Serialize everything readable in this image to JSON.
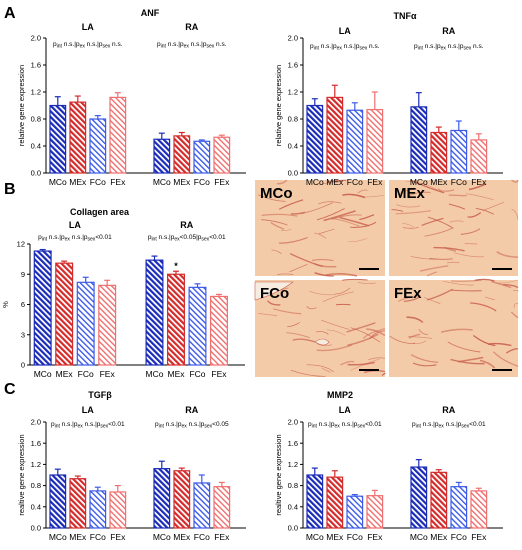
{
  "figure": {
    "panel_letters": [
      "A",
      "B",
      "C"
    ],
    "micrograph": {
      "labels": [
        "MCo",
        "MEx",
        "FCo",
        "FEx"
      ],
      "colors": {
        "background": "#f4cba8",
        "fiber": "#c8604d"
      }
    }
  },
  "colors": {
    "blue": "#1a2bb8",
    "red": "#d42a2a",
    "light_blue": "#3d5be8",
    "light_red": "#f06f6f"
  },
  "chart_data": [
    {
      "id": "anf",
      "type": "bar",
      "title": "ANF",
      "ylabel": "relative gene expression",
      "ylim": [
        0,
        2.0
      ],
      "yticks": [
        "0.0",
        "0.4",
        "0.8",
        "1.2",
        "1.6",
        "2.0"
      ],
      "groups": [
        "LA",
        "RA"
      ],
      "categories": [
        "MCo",
        "MEx",
        "FCo",
        "FEx"
      ],
      "pvalue_labels": {
        "LA": [
          "int n.s.",
          "ex n.s.",
          "sex n.s."
        ],
        "RA": [
          "int n.s.",
          "ex n.s.",
          "sex n.s."
        ]
      },
      "series": [
        {
          "group": "LA",
          "values": [
            1.0,
            1.05,
            0.8,
            1.12
          ],
          "errors": [
            0.13,
            0.09,
            0.05,
            0.07
          ]
        },
        {
          "group": "RA",
          "values": [
            0.5,
            0.55,
            0.47,
            0.53
          ],
          "errors": [
            0.09,
            0.05,
            0.02,
            0.03
          ]
        }
      ],
      "annotations": []
    },
    {
      "id": "tnfa",
      "type": "bar",
      "title": "TNFα",
      "ylabel": "relative gene expression",
      "ylim": [
        0,
        2.0
      ],
      "yticks": [
        "0.0",
        "0.4",
        "0.8",
        "1.2",
        "1.6",
        "2.0"
      ],
      "groups": [
        "LA",
        "RA"
      ],
      "categories": [
        "MCo",
        "MEx",
        "FCo",
        "FEx"
      ],
      "pvalue_labels": {
        "LA": [
          "int n.s.",
          "ex n.s.",
          "sex n.s."
        ],
        "RA": [
          "int n.s.",
          "ex n.s.",
          "sex n.s."
        ]
      },
      "series": [
        {
          "group": "LA",
          "values": [
            1.0,
            1.12,
            0.93,
            0.94
          ],
          "errors": [
            0.1,
            0.18,
            0.11,
            0.26
          ]
        },
        {
          "group": "RA",
          "values": [
            0.98,
            0.6,
            0.63,
            0.49
          ],
          "errors": [
            0.21,
            0.08,
            0.14,
            0.09
          ]
        }
      ],
      "annotations": []
    },
    {
      "id": "collagen",
      "type": "bar",
      "title": "Collagen area",
      "ylabel": "%",
      "ylim": [
        0,
        12
      ],
      "yticks": [
        "0",
        "3",
        "6",
        "9",
        "12"
      ],
      "groups": [
        "LA",
        "RA"
      ],
      "categories": [
        "MCo",
        "MEx",
        "FCo",
        "FEx"
      ],
      "pvalue_labels": {
        "LA": [
          "int n.s.",
          "ex n.s.",
          "sex<0.01"
        ],
        "RA": [
          "int n.s.",
          "ex<0.05",
          "sex<0.01"
        ]
      },
      "series": [
        {
          "group": "LA",
          "values": [
            11.3,
            10.1,
            8.2,
            7.9
          ],
          "errors": [
            0.15,
            0.2,
            0.5,
            0.5
          ]
        },
        {
          "group": "RA",
          "values": [
            10.4,
            9.0,
            7.7,
            6.8
          ],
          "errors": [
            0.4,
            0.3,
            0.35,
            0.2
          ]
        }
      ],
      "annotations": [
        {
          "group": "RA",
          "index": 1,
          "text": "*"
        }
      ]
    },
    {
      "id": "tgfb",
      "type": "bar",
      "title": "TGFβ",
      "ylabel": "realtive gene expression",
      "ylim": [
        0,
        2.0
      ],
      "yticks": [
        "0.0",
        "0.4",
        "0.8",
        "1.2",
        "1.6",
        "2.0"
      ],
      "groups": [
        "LA",
        "RA"
      ],
      "categories": [
        "MCo",
        "MEx",
        "FCo",
        "FEx"
      ],
      "pvalue_labels": {
        "LA": [
          "int n.s.",
          "ex n.s.",
          "sex<0.01"
        ],
        "RA": [
          "int n.s.",
          "ex n.s.",
          "sex<0.05"
        ]
      },
      "series": [
        {
          "group": "LA",
          "values": [
            1.0,
            0.93,
            0.7,
            0.68
          ],
          "errors": [
            0.11,
            0.05,
            0.07,
            0.12
          ]
        },
        {
          "group": "RA",
          "values": [
            1.12,
            1.08,
            0.85,
            0.78
          ],
          "errors": [
            0.14,
            0.05,
            0.15,
            0.08
          ]
        }
      ],
      "annotations": []
    },
    {
      "id": "mmp2",
      "type": "bar",
      "title": "MMP2",
      "ylabel": "realtive gene expression",
      "ylim": [
        0,
        2.0
      ],
      "yticks": [
        "0.0",
        "0.4",
        "0.8",
        "1.2",
        "1.6",
        "2.0"
      ],
      "groups": [
        "LA",
        "RA"
      ],
      "categories": [
        "MCo",
        "MEx",
        "FCo",
        "FEx"
      ],
      "pvalue_labels": {
        "LA": [
          "int n.s.",
          "ex n.s.",
          "sex<0.01"
        ],
        "RA": [
          "int n.s.",
          "ex n.s.",
          "sex<0.01"
        ]
      },
      "series": [
        {
          "group": "LA",
          "values": [
            1.0,
            0.96,
            0.6,
            0.61
          ],
          "errors": [
            0.13,
            0.12,
            0.03,
            0.1
          ]
        },
        {
          "group": "RA",
          "values": [
            1.15,
            1.05,
            0.78,
            0.7
          ],
          "errors": [
            0.14,
            0.05,
            0.08,
            0.05
          ]
        }
      ],
      "annotations": []
    }
  ]
}
